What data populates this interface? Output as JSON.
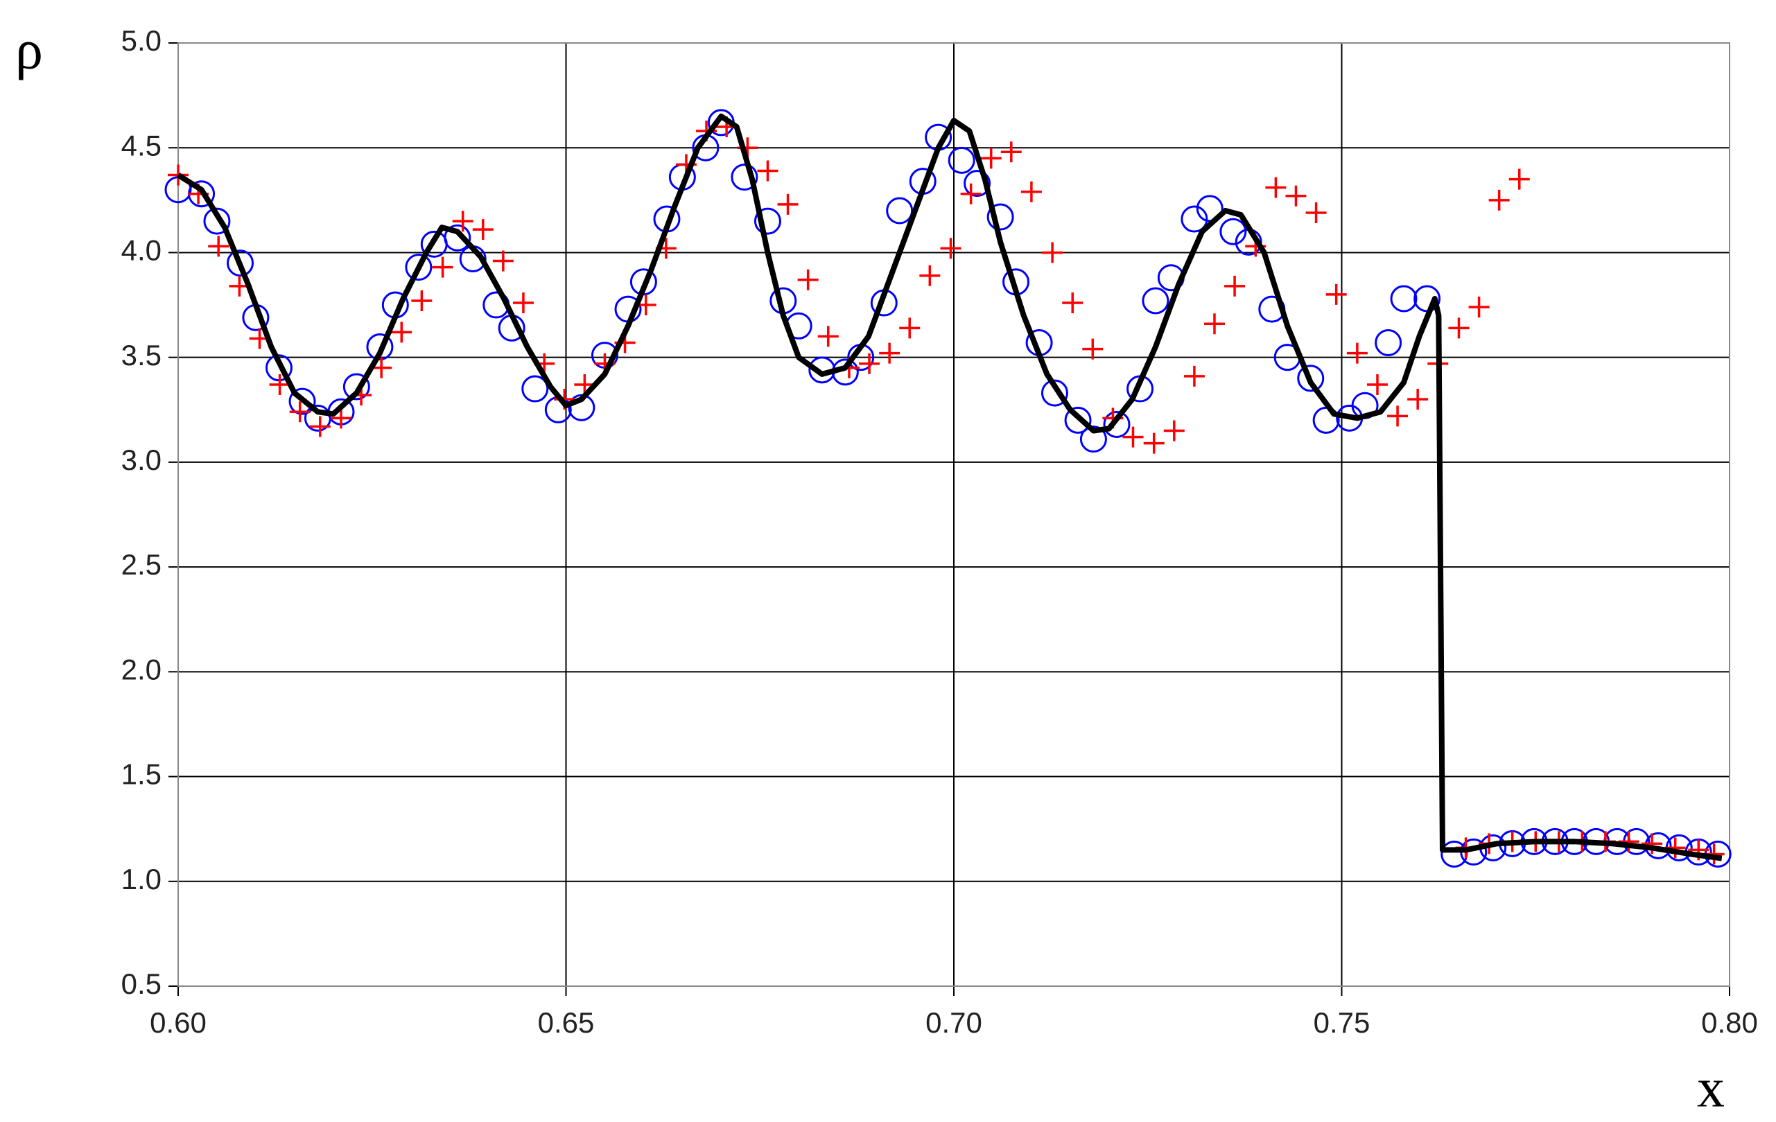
{
  "chart_data": {
    "type": "line",
    "ylabel": "ρ",
    "xlabel": "x",
    "xlim": [
      0.6,
      0.8
    ],
    "ylim": [
      0.5,
      5.0
    ],
    "xticks": [
      {
        "value": 0.6,
        "label": "0.60"
      },
      {
        "value": 0.65,
        "label": "0.65"
      },
      {
        "value": 0.7,
        "label": "0.70"
      },
      {
        "value": 0.75,
        "label": "0.75"
      },
      {
        "value": 0.8,
        "label": "0.80"
      }
    ],
    "yticks": [
      0.5,
      {
        "value": 1.0,
        "label": "1.0"
      },
      1.5,
      {
        "value": 2.0,
        "label": "2.0"
      },
      2.5,
      {
        "value": 3.0,
        "label": "3.0"
      },
      3.5,
      {
        "value": 4.0,
        "label": "4.0"
      },
      4.5,
      {
        "value": 5.0,
        "label": "5.0"
      }
    ],
    "grid": true,
    "series": [
      {
        "color": "#000000",
        "marker": "line",
        "x": [
          0.6,
          0.603,
          0.606,
          0.609,
          0.612,
          0.615,
          0.618,
          0.62,
          0.623,
          0.626,
          0.629,
          0.632,
          0.634,
          0.636,
          0.639,
          0.642,
          0.645,
          0.648,
          0.65,
          0.652,
          0.655,
          0.658,
          0.661,
          0.664,
          0.667,
          0.67,
          0.672,
          0.674,
          0.676,
          0.678,
          0.68,
          0.683,
          0.686,
          0.689,
          0.692,
          0.695,
          0.698,
          0.7,
          0.702,
          0.704,
          0.706,
          0.709,
          0.712,
          0.715,
          0.718,
          0.72,
          0.723,
          0.726,
          0.729,
          0.732,
          0.735,
          0.737,
          0.74,
          0.743,
          0.746,
          0.749,
          0.752,
          0.755,
          0.758,
          0.76,
          0.762,
          0.7625,
          0.763,
          0.766,
          0.77,
          0.775,
          0.78,
          0.785,
          0.79,
          0.795,
          0.799
        ],
        "values": [
          4.37,
          4.3,
          4.12,
          3.85,
          3.55,
          3.33,
          3.24,
          3.23,
          3.33,
          3.52,
          3.78,
          4.0,
          4.12,
          4.1,
          3.98,
          3.78,
          3.55,
          3.36,
          3.27,
          3.3,
          3.42,
          3.65,
          3.92,
          4.22,
          4.5,
          4.65,
          4.6,
          4.35,
          4.0,
          3.7,
          3.5,
          3.42,
          3.45,
          3.6,
          3.9,
          4.2,
          4.5,
          4.63,
          4.58,
          4.35,
          4.05,
          3.7,
          3.42,
          3.25,
          3.15,
          3.16,
          3.3,
          3.55,
          3.85,
          4.1,
          4.2,
          4.18,
          4.0,
          3.65,
          3.38,
          3.23,
          3.21,
          3.24,
          3.38,
          3.6,
          3.78,
          3.7,
          1.15,
          1.15,
          1.18,
          1.19,
          1.19,
          1.18,
          1.16,
          1.13,
          1.11
        ]
      },
      {
        "color": "#0000ff",
        "marker": "circle",
        "x": [
          0.6,
          0.603,
          0.605,
          0.608,
          0.61,
          0.613,
          0.616,
          0.618,
          0.621,
          0.623,
          0.626,
          0.628,
          0.631,
          0.633,
          0.636,
          0.638,
          0.641,
          0.643,
          0.646,
          0.649,
          0.652,
          0.655,
          0.658,
          0.66,
          0.663,
          0.665,
          0.668,
          0.67,
          0.673,
          0.676,
          0.678,
          0.68,
          0.683,
          0.686,
          0.688,
          0.691,
          0.693,
          0.696,
          0.698,
          0.701,
          0.703,
          0.706,
          0.708,
          0.711,
          0.713,
          0.716,
          0.718,
          0.721,
          0.724,
          0.726,
          0.728,
          0.731,
          0.733,
          0.736,
          0.738,
          0.741,
          0.743,
          0.746,
          0.748,
          0.751,
          0.753,
          0.756,
          0.758,
          0.761,
          0.7645,
          0.767,
          0.7695,
          0.772,
          0.7748,
          0.7775,
          0.78,
          0.7828,
          0.7855,
          0.788,
          0.7908,
          0.7935,
          0.796,
          0.7985
        ],
        "values": [
          4.3,
          4.28,
          4.15,
          3.95,
          3.69,
          3.45,
          3.29,
          3.21,
          3.24,
          3.36,
          3.55,
          3.75,
          3.93,
          4.04,
          4.07,
          3.97,
          3.75,
          3.64,
          3.35,
          3.25,
          3.26,
          3.51,
          3.73,
          3.86,
          4.16,
          4.36,
          4.5,
          4.62,
          4.36,
          4.15,
          3.77,
          3.65,
          3.44,
          3.43,
          3.5,
          3.76,
          4.2,
          4.34,
          4.55,
          4.44,
          4.33,
          4.17,
          3.86,
          3.57,
          3.33,
          3.2,
          3.11,
          3.18,
          3.35,
          3.77,
          3.88,
          4.16,
          4.21,
          4.1,
          4.05,
          3.73,
          3.5,
          3.4,
          3.2,
          3.21,
          3.27,
          3.57,
          3.78,
          3.78,
          1.13,
          1.14,
          1.16,
          1.18,
          1.19,
          1.19,
          1.19,
          1.19,
          1.19,
          1.19,
          1.17,
          1.16,
          1.14,
          1.13
        ]
      },
      {
        "color": "#ff0000",
        "marker": "plus",
        "x": [
          0.6,
          0.6026,
          0.6052,
          0.6079,
          0.6105,
          0.6131,
          0.6157,
          0.6183,
          0.621,
          0.6236,
          0.6262,
          0.6288,
          0.6314,
          0.6341,
          0.6367,
          0.6393,
          0.6419,
          0.6445,
          0.6472,
          0.6498,
          0.6524,
          0.655,
          0.6576,
          0.6603,
          0.6629,
          0.6655,
          0.6681,
          0.6707,
          0.6734,
          0.676,
          0.6786,
          0.6812,
          0.6838,
          0.6865,
          0.6891,
          0.6917,
          0.6943,
          0.6969,
          0.6996,
          0.7022,
          0.7048,
          0.7074,
          0.71,
          0.7127,
          0.7153,
          0.7179,
          0.7205,
          0.7231,
          0.7258,
          0.7284,
          0.731,
          0.7336,
          0.7362,
          0.7389,
          0.7415,
          0.7441,
          0.7467,
          0.7493,
          0.752,
          0.7546,
          0.7572,
          0.7598,
          0.7624,
          0.7651,
          0.7677,
          0.7703,
          0.7729,
          0.766,
          0.769,
          0.772,
          0.775,
          0.778,
          0.781,
          0.784,
          0.787,
          0.79,
          0.793,
          0.796,
          0.798
        ],
        "values": [
          4.37,
          4.28,
          4.03,
          3.84,
          3.59,
          3.37,
          3.24,
          3.17,
          3.21,
          3.32,
          3.45,
          3.62,
          3.77,
          3.93,
          4.15,
          4.11,
          3.96,
          3.76,
          3.47,
          3.3,
          3.37,
          3.47,
          3.57,
          3.75,
          4.02,
          4.42,
          4.58,
          4.6,
          4.5,
          4.39,
          4.23,
          3.87,
          3.6,
          3.45,
          3.47,
          3.52,
          3.64,
          3.89,
          4.02,
          4.28,
          4.45,
          4.48,
          4.29,
          4.0,
          3.76,
          3.54,
          3.21,
          3.12,
          3.09,
          3.15,
          3.41,
          3.66,
          3.84,
          4.03,
          4.31,
          4.27,
          4.19,
          3.8,
          3.52,
          3.37,
          3.22,
          3.3,
          3.47,
          3.64,
          3.74,
          4.25,
          4.35,
          1.16,
          1.18,
          1.19,
          1.19,
          1.19,
          1.19,
          1.19,
          1.19,
          1.18,
          1.16,
          1.15,
          1.13
        ]
      }
    ]
  }
}
